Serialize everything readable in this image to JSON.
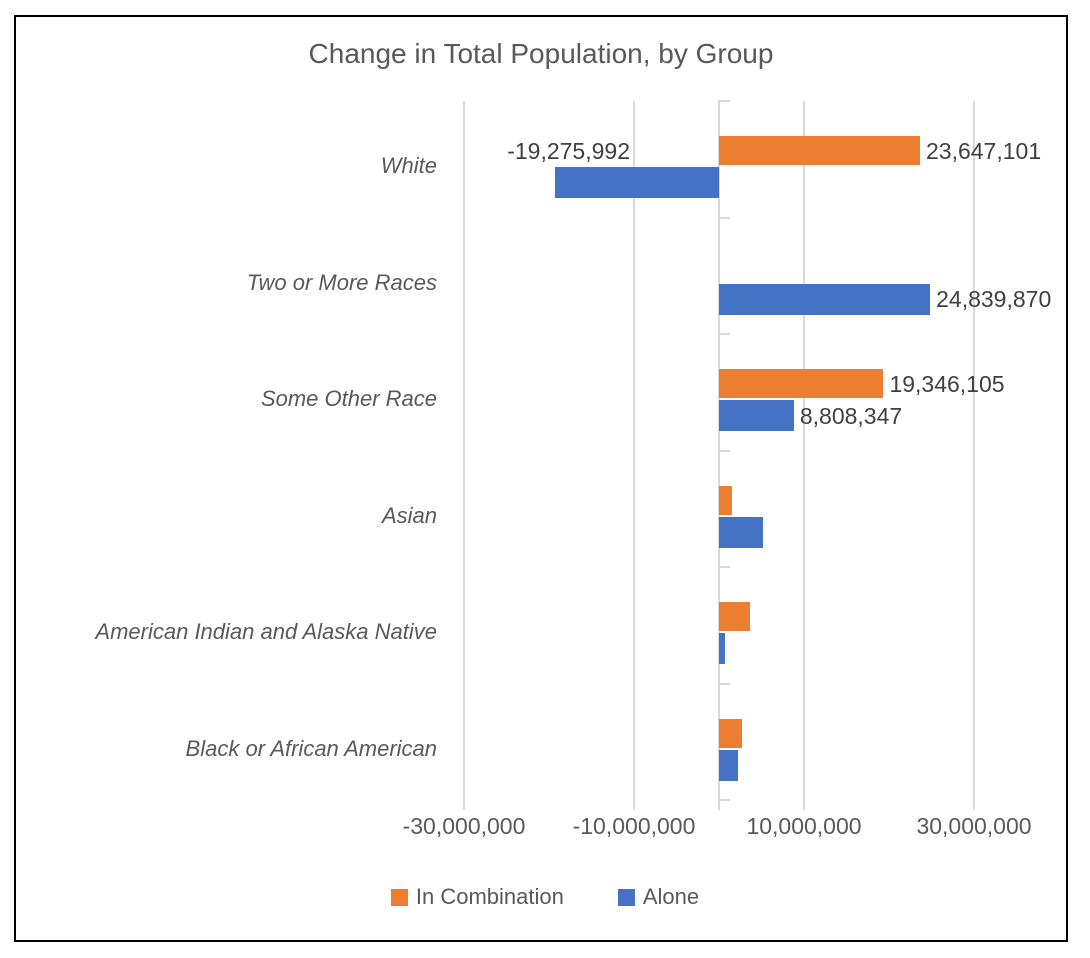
{
  "chart_data": {
    "type": "bar",
    "orientation": "horizontal",
    "title": "Change in Total Population, by Group",
    "categories": [
      "White",
      "Two or More Races",
      "Some Other Race",
      "Asian",
      "American Indian and Alaska Native",
      "Black or African American"
    ],
    "series": [
      {
        "name": "In Combination",
        "color": "#ED7D31",
        "values": [
          23647101,
          null,
          19346105,
          1500000,
          3600000,
          2700000
        ]
      },
      {
        "name": "Alone",
        "color": "#4472C4",
        "values": [
          -19275992,
          24839870,
          8808347,
          5200000,
          750000,
          2200000
        ]
      }
    ],
    "data_labels": [
      {
        "series": 0,
        "index": 0,
        "text": "23,647,101",
        "placement": "outside-end"
      },
      {
        "series": 1,
        "index": 0,
        "text": "-19,275,992",
        "placement": "above-bar-right-aligned"
      },
      {
        "series": 1,
        "index": 1,
        "text": "24,839,870",
        "placement": "outside-end"
      },
      {
        "series": 0,
        "index": 2,
        "text": "19,346,105",
        "placement": "outside-end"
      },
      {
        "series": 1,
        "index": 2,
        "text": "8,808,347",
        "placement": "outside-end"
      }
    ],
    "x_axis": {
      "tick_labels": [
        "-30,000,000",
        "-10,000,000",
        "10,000,000",
        "30,000,000"
      ],
      "tick_values": [
        -30000000,
        -10000000,
        10000000,
        30000000
      ],
      "min": -33000000,
      "max": 41000000
    },
    "legend": [
      {
        "label": "In Combination",
        "color": "#ED7D31"
      },
      {
        "label": "Alone",
        "color": "#4472C4"
      }
    ],
    "gridlines": true,
    "legend_position": "bottom",
    "colors": {
      "in_combination": "#ED7D31",
      "alone": "#4472C4",
      "gridline": "#D9D9D9",
      "axis_text": "#595959",
      "data_label_text": "#404040",
      "title_text": "#595959",
      "frame_border": "#000000"
    }
  }
}
